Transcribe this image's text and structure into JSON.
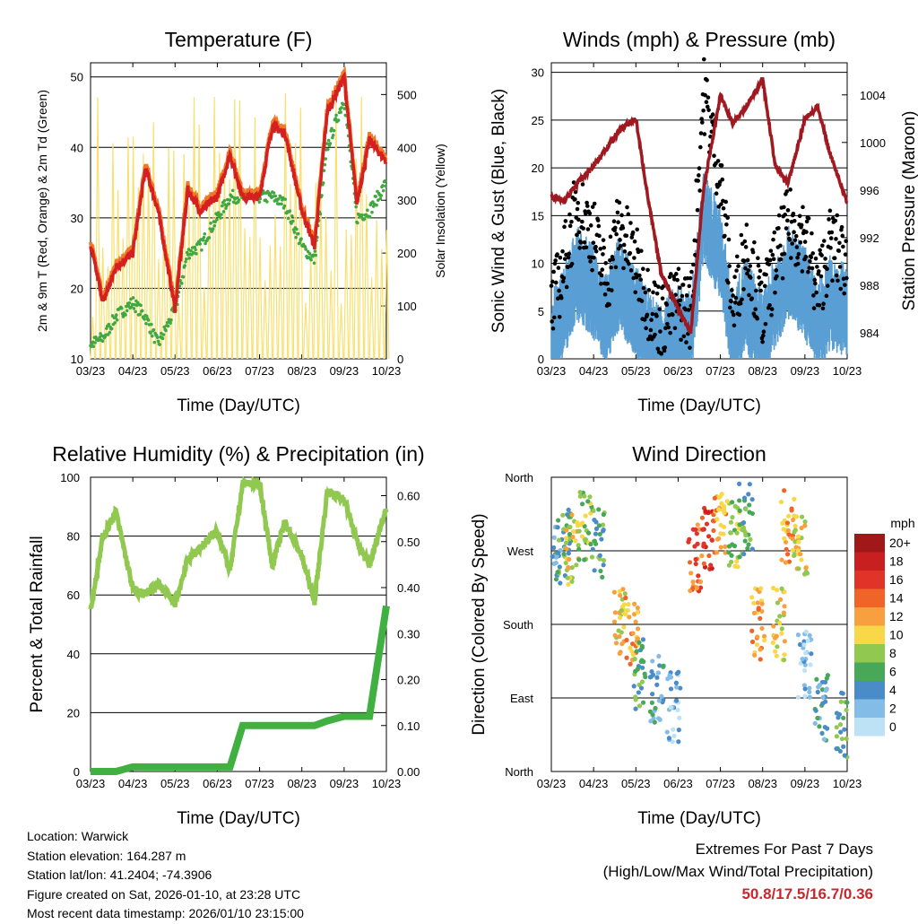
{
  "x_ticks": [
    "03/23",
    "04/23",
    "05/23",
    "06/23",
    "07/23",
    "08/23",
    "09/23",
    "10/23"
  ],
  "x_title": "Time (Day/UTC)",
  "colors": {
    "t2m": "#d42020",
    "t9m": "#f07828",
    "td": "#40a840",
    "solar": "#f8e070",
    "gust": "#000000",
    "wind": "#5a9fd4",
    "pressure": "#a01820",
    "rh": "#90c850",
    "precip": "#40b040",
    "extremes": "#c8282d"
  },
  "chart_data": [
    {
      "id": "temperature",
      "type": "line",
      "title": "Temperature (F)",
      "ylabel": "2m & 9m T (Red, Orange) & 2m Td (Green)",
      "y2label": "Solar Insolation (Yellow)",
      "ylim": [
        10,
        52
      ],
      "y2lim": [
        0,
        560
      ],
      "yticks": [
        10,
        20,
        30,
        40,
        50
      ],
      "y2ticks": [
        0,
        100,
        200,
        300,
        400,
        500
      ],
      "x": [
        0,
        0.3,
        0.6,
        1,
        1.3,
        1.6,
        2,
        2.3,
        2.6,
        3,
        3.3,
        3.6,
        4,
        4.3,
        4.6,
        5,
        5.3,
        5.6,
        6,
        6.3,
        6.6,
        7
      ],
      "series": [
        {
          "name": "2m T",
          "values": [
            26,
            18,
            23,
            25,
            37,
            31,
            17,
            34,
            31,
            33,
            39,
            33,
            33,
            43,
            42,
            31,
            26,
            45,
            50,
            32,
            41,
            38
          ]
        },
        {
          "name": "2m Td",
          "values": [
            12,
            13,
            16,
            18,
            16,
            12,
            17,
            25,
            26,
            30,
            33,
            33,
            33,
            33,
            32,
            26,
            24,
            40,
            47,
            30,
            31,
            35
          ]
        },
        {
          "name": "Solar",
          "values": [
            0,
            500,
            0,
            480,
            0,
            250,
            0,
            450,
            0,
            380,
            0,
            530,
            0,
            540,
            0,
            480,
            0,
            550,
            0,
            300,
            0,
            120
          ]
        }
      ]
    },
    {
      "id": "winds",
      "type": "line+scatter",
      "title": "Winds (mph) & Pressure (mb)",
      "ylabel": "Sonic Wind & Gust (Blue, Black)",
      "y2label": "Station Pressure (Maroon)",
      "ylim": [
        0,
        31
      ],
      "y2lim": [
        981.8,
        1006.7
      ],
      "yticks": [
        0,
        5,
        10,
        15,
        20,
        25,
        30
      ],
      "y2ticks": [
        984,
        988,
        992,
        996,
        1000,
        1004
      ],
      "x": [
        0,
        0.3,
        0.6,
        1,
        1.3,
        1.6,
        2,
        2.3,
        2.6,
        3,
        3.3,
        3.6,
        4,
        4.3,
        4.6,
        5,
        5.3,
        5.6,
        6,
        6.3,
        6.6,
        7
      ],
      "series": [
        {
          "name": "Pressure",
          "values": [
            995.5,
            995,
            996.5,
            998,
            999.5,
            1001,
            1002,
            995,
            989,
            986,
            984,
            996,
            1004,
            1001.5,
            1003,
            1005.3,
            998,
            996.5,
            1002,
            1003,
            999,
            995
          ]
        },
        {
          "name": "Gust",
          "values": [
            5,
            10,
            16,
            13,
            8,
            14,
            10,
            6,
            4,
            6,
            5,
            28,
            19,
            5,
            12,
            5,
            10,
            14,
            13,
            7,
            12,
            10
          ]
        },
        {
          "name": "Wind",
          "values": [
            3,
            6,
            10,
            8,
            5,
            9,
            6,
            3,
            2,
            4,
            3,
            16,
            12,
            3,
            7,
            3,
            7,
            10,
            8,
            4,
            7,
            6
          ]
        }
      ]
    },
    {
      "id": "humidity",
      "type": "line",
      "title": "Relative Humidity (%) & Precipitation (in)",
      "ylabel": "Percent & Total Rainfall",
      "ylim": [
        0,
        100
      ],
      "y2lim": [
        0,
        0.64
      ],
      "yticks": [
        0,
        20,
        40,
        60,
        80,
        100
      ],
      "y2ticks": [
        "0.00",
        "0.10",
        "0.20",
        "0.30",
        "0.40",
        "0.50",
        "0.60"
      ],
      "x": [
        0,
        0.3,
        0.6,
        1,
        1.3,
        1.6,
        2,
        2.3,
        2.6,
        3,
        3.3,
        3.6,
        4,
        4.3,
        4.6,
        5,
        5.3,
        5.6,
        6,
        6.3,
        6.6,
        7
      ],
      "series": [
        {
          "name": "RH",
          "values": [
            55,
            80,
            88,
            62,
            60,
            64,
            57,
            72,
            76,
            82,
            68,
            98,
            98,
            70,
            85,
            73,
            58,
            95,
            93,
            78,
            70,
            90
          ]
        },
        {
          "name": "Precip",
          "values": [
            0,
            0,
            0,
            0.01,
            0.01,
            0.01,
            0.01,
            0.01,
            0.01,
            0.01,
            0.01,
            0.1,
            0.1,
            0.1,
            0.1,
            0.1,
            0.1,
            0.11,
            0.12,
            0.12,
            0.12,
            0.36
          ]
        }
      ]
    },
    {
      "id": "direction",
      "type": "scatter",
      "title": "Wind Direction",
      "ylabel": "Direction (Colored By Speed)",
      "yticks": [
        "North",
        "East",
        "South",
        "West",
        "North"
      ],
      "legend_title": "mph",
      "legend_labels": [
        "20+",
        "18",
        "16",
        "14",
        "12",
        "10",
        "8",
        "6",
        "4",
        "2",
        "0"
      ],
      "legend_colors": [
        "#a01818",
        "#c82020",
        "#e03428",
        "#f06428",
        "#f8a040",
        "#f8d848",
        "#90c850",
        "#48a858",
        "#4a8cc8",
        "#84bce8",
        "#bde2f6"
      ],
      "x": [
        0.1,
        0.3,
        0.5,
        0.8,
        1.1,
        1.6,
        1.9,
        2.1,
        2.5,
        2.9,
        3.4,
        3.7,
        4.0,
        4.3,
        4.6,
        4.9,
        5.4,
        5.6,
        5.9,
        6.0,
        6.4,
        6.9
      ],
      "values": [
        270,
        280,
        270,
        300,
        280,
        180,
        170,
        120,
        100,
        80,
        260,
        290,
        300,
        290,
        310,
        180,
        180,
        300,
        280,
        130,
        80,
        60
      ],
      "speeds": [
        4,
        6,
        10,
        8,
        6,
        10,
        12,
        6,
        4,
        2,
        14,
        16,
        12,
        8,
        6,
        12,
        10,
        12,
        10,
        2,
        4,
        6
      ]
    }
  ],
  "info": {
    "location": "Location: Warwick",
    "elevation": "Station elevation: 164.287 m",
    "latlon": "Station lat/lon: 41.2404; -74.3906",
    "created": "Figure created on Sat, 2026-01-10, at 23:28 UTC",
    "recent": "Most recent data timestamp: 2026/01/10 23:15:00"
  },
  "extremes": {
    "line1": "Extremes For Past 7 Days",
    "line2": "(High/Low/Max Wind/Total Precipitation)",
    "values": "50.8/17.5/16.7/0.36"
  }
}
